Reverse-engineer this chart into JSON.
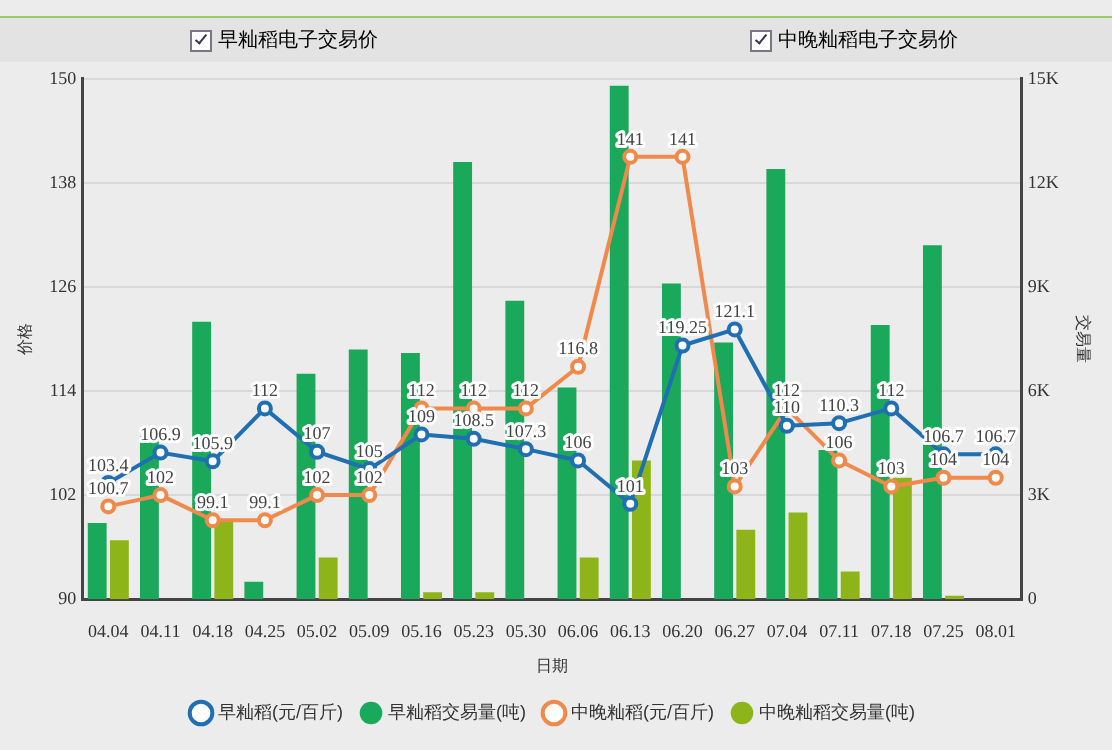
{
  "chart_data": {
    "type": "line",
    "xlabel": "日期",
    "ylabel": "价格",
    "y2label": "交易量",
    "annotations": [
      "早籼稻电子交易价",
      "中晚籼稻电子交易价"
    ],
    "categories": [
      "04.04",
      "04.11",
      "04.18",
      "04.25",
      "05.02",
      "05.09",
      "05.16",
      "05.23",
      "05.30",
      "06.06",
      "06.13",
      "06.20",
      "06.27",
      "07.04",
      "07.11",
      "07.18",
      "07.25",
      "08.01"
    ],
    "series": [
      {
        "name": "早籼稻(元/百斤)",
        "color": "#1f6fb2",
        "values": [
          103.4,
          106.9,
          105.9,
          112,
          107,
          105,
          109,
          108.5,
          107.3,
          106,
          101,
          119.25,
          121.1,
          110,
          110.3,
          112,
          106.7,
          106.7
        ],
        "value_labels": [
          "103.4",
          "106.9",
          "105.9",
          "112",
          "107",
          "105",
          "109",
          "108.5",
          "107.3",
          "106",
          "101",
          "119.25",
          "121.1",
          "110",
          "110.3",
          "112",
          "106.7",
          "106.7"
        ]
      },
      {
        "name": "早籼稻交易量(吨)",
        "type": "bar",
        "axis": "y2",
        "color": "#1aa85a",
        "values": [
          2200,
          4700,
          8000,
          500,
          6500,
          7200,
          7100,
          12600,
          8600,
          6100,
          14800,
          9100,
          7400,
          12400,
          4300,
          7900,
          10200,
          null
        ]
      },
      {
        "name": "中晚籼稻(元/百斤)",
        "color": "#f08a4b",
        "values": [
          100.7,
          102,
          99.1,
          99.1,
          102,
          102,
          112,
          112,
          112,
          116.8,
          141,
          141,
          103,
          112,
          106,
          103,
          104,
          104
        ],
        "value_labels": [
          "100.7",
          "102",
          "99.1",
          "99.1",
          "102",
          "102",
          "112",
          "112",
          "112",
          "116.8",
          "141",
          "141",
          "103",
          "112",
          "106",
          "103",
          "104",
          "104"
        ]
      },
      {
        "name": "中晚籼稻交易量(吨)",
        "type": "bar",
        "axis": "y2",
        "color": "#8db51a",
        "values": [
          1700,
          null,
          2300,
          null,
          1200,
          null,
          200,
          200,
          null,
          1200,
          4000,
          null,
          2000,
          2500,
          800,
          3500,
          100,
          null
        ]
      }
    ],
    "ylim": [
      90,
      150
    ],
    "yticks": [
      90,
      102,
      114,
      126,
      138,
      150
    ],
    "y2lim": [
      0,
      15000
    ],
    "y2ticks": [
      {
        "value": 0,
        "label": "0"
      },
      {
        "value": 3000,
        "label": "3K"
      },
      {
        "value": 6000,
        "label": "6K"
      },
      {
        "value": 9000,
        "label": "9K"
      },
      {
        "value": 12000,
        "label": "12K"
      },
      {
        "value": 15000,
        "label": "15K"
      }
    ],
    "grid": "y",
    "legend": "bottom",
    "marker": "circle",
    "line_style": "solid"
  }
}
